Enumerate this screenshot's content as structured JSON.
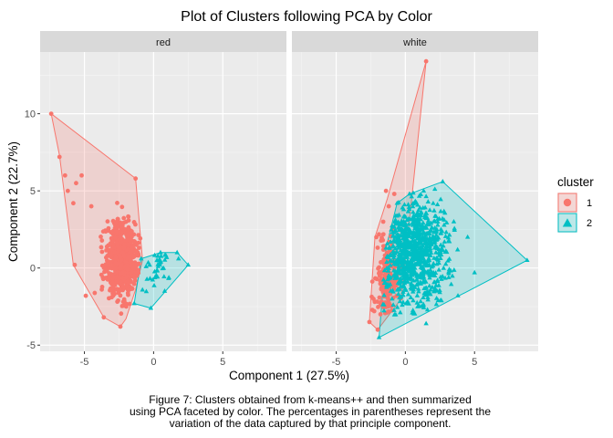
{
  "chart_data": {
    "type": "scatter",
    "title": "Plot of Clusters following PCA by Color",
    "xlabel": "Component 1 (27.5%)",
    "ylabel": "Component 2 (22.7%)",
    "xlim": [
      -8.2,
      9.6
    ],
    "ylim": [
      -5.4,
      14.0
    ],
    "x_ticks": [
      -5,
      0,
      5
    ],
    "y_ticks": [
      -5,
      0,
      5,
      10
    ],
    "grid": true,
    "facet_by": "color",
    "facets": [
      {
        "label": "red",
        "clusters": [
          {
            "name": "1",
            "color": "#F8766D",
            "shape": "circle",
            "center": [
              -2.3,
              0.6
            ],
            "spread": [
              0.6,
              1.2
            ],
            "n_points": 650,
            "hull": [
              [
                -7.4,
                10.0
              ],
              [
                -6.8,
                7.3
              ],
              [
                -5.8,
                0.2
              ],
              [
                -3.6,
                -3.2
              ],
              [
                -2.4,
                -3.8
              ],
              [
                -2.0,
                -3.3
              ],
              [
                -1.3,
                -1.4
              ],
              [
                -0.8,
                0.5
              ],
              [
                -1.3,
                5.8
              ]
            ],
            "extra_points": [
              [
                -7.4,
                10.0
              ],
              [
                -6.8,
                7.2
              ],
              [
                -6.4,
                6.0
              ],
              [
                -6.2,
                5.0
              ],
              [
                -5.8,
                4.2
              ],
              [
                -5.7,
                0.2
              ],
              [
                -4.9,
                -1.8
              ],
              [
                -3.6,
                -3.2
              ],
              [
                -2.4,
                -3.8
              ],
              [
                -1.3,
                5.8
              ],
              [
                -5.6,
                5.5
              ],
              [
                -5.2,
                6.0
              ],
              [
                -4.5,
                4.0
              ]
            ]
          },
          {
            "name": "2",
            "color": "#00BFC4",
            "shape": "triangle",
            "center": [
              0.2,
              0.1
            ],
            "spread": [
              0.7,
              0.7
            ],
            "n_points": 35,
            "hull": [
              [
                -1.4,
                -2.3
              ],
              [
                -0.2,
                -2.6
              ],
              [
                2.5,
                0.2
              ],
              [
                1.7,
                1.0
              ],
              [
                0.5,
                1.0
              ],
              [
                -0.9,
                0.6
              ]
            ],
            "extra_points": [
              [
                -1.4,
                -2.3
              ],
              [
                -0.2,
                -2.6
              ],
              [
                2.5,
                0.2
              ],
              [
                1.7,
                1.0
              ],
              [
                0.5,
                1.0
              ],
              [
                -0.9,
                0.6
              ],
              [
                1.8,
                0.6
              ],
              [
                0.8,
                -1.5
              ]
            ]
          }
        ]
      },
      {
        "label": "white",
        "clusters": [
          {
            "name": "1",
            "color": "#F8766D",
            "shape": "circle",
            "center": [
              -1.4,
              -1.0
            ],
            "spread": [
              0.4,
              1.4
            ],
            "n_points": 170,
            "hull": [
              [
                1.5,
                13.4
              ],
              [
                -1.3,
                4.5
              ],
              [
                -2.2,
                2.0
              ],
              [
                -2.6,
                -3.5
              ],
              [
                -2.0,
                -4.0
              ],
              [
                -0.3,
                -2.0
              ]
            ],
            "extra_points": [
              [
                1.5,
                13.4
              ],
              [
                -0.8,
                4.8
              ],
              [
                -1.2,
                4.0
              ],
              [
                -1.6,
                3.0
              ],
              [
                -2.1,
                2.0
              ],
              [
                -2.3,
                -2.0
              ],
              [
                -2.6,
                -3.5
              ],
              [
                -2.0,
                -4.0
              ],
              [
                -1.4,
                5.0
              ],
              [
                -1.8,
                -3.0
              ]
            ]
          },
          {
            "name": "2",
            "color": "#00BFC4",
            "shape": "triangle",
            "center": [
              0.6,
              0.9
            ],
            "spread": [
              1.1,
              1.8
            ],
            "n_points": 900,
            "hull": [
              [
                -1.9,
                -4.5
              ],
              [
                8.8,
                0.5
              ],
              [
                2.7,
                5.6
              ],
              [
                0.3,
                4.8
              ],
              [
                -0.6,
                4.2
              ],
              [
                -1.4,
                1.3
              ]
            ],
            "extra_points": [
              [
                -1.9,
                -4.5
              ],
              [
                8.8,
                0.5
              ],
              [
                2.7,
                5.6
              ],
              [
                0.3,
                4.8
              ],
              [
                -0.6,
                4.2
              ],
              [
                -1.4,
                1.3
              ],
              [
                4.5,
                2.0
              ],
              [
                3.5,
                3.0
              ],
              [
                5.0,
                -0.3
              ],
              [
                3.8,
                -1.8
              ],
              [
                1.5,
                -3.6
              ]
            ]
          }
        ]
      }
    ],
    "legend": {
      "title": "cluster",
      "position": "right",
      "entries": [
        {
          "label": "1",
          "color": "#F8766D",
          "shape": "circle"
        },
        {
          "label": "2",
          "color": "#00BFC4",
          "shape": "triangle"
        }
      ]
    },
    "caption": [
      "Figure 7: Clusters obtained from k-means++ and then summarized",
      "using PCA faceted by color. The percentages in parentheses represent the",
      "variation of the data captured by that principle component."
    ]
  }
}
